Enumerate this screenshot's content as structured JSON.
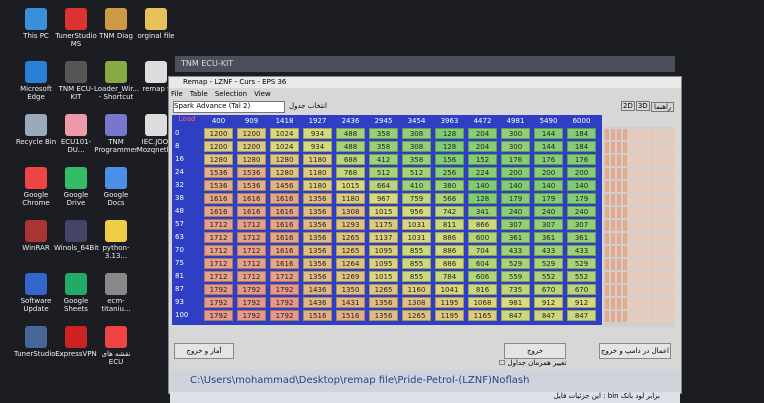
{
  "desktop_icons": [
    {
      "label": "This PC"
    },
    {
      "label": "TunerStudio MS"
    },
    {
      "label": "TNM Diag"
    },
    {
      "label": "orginal file"
    },
    {
      "label": "Microsoft Edge"
    },
    {
      "label": "TNM ECU-KIT"
    },
    {
      "label": "Loader_Wir... - Shortcut"
    },
    {
      "label": "remap f"
    },
    {
      "label": "Recycle Bin"
    },
    {
      "label": "ECU101-DU..."
    },
    {
      "label": "TNM Programmer"
    },
    {
      "label": "IEC.JOOI Mozqnetl..."
    },
    {
      "label": "Google Chrome"
    },
    {
      "label": "Google Drive"
    },
    {
      "label": "Google Docs"
    },
    {
      "label": "WinRAR"
    },
    {
      "label": "Winols_64Bit"
    },
    {
      "label": "python-3.13..."
    },
    {
      "label": "Software Update"
    },
    {
      "label": "Google Sheets"
    },
    {
      "label": "ecm-titaniu..."
    },
    {
      "label": "TunerStudio..."
    },
    {
      "label": "ExpressVPN"
    },
    {
      "label": "نقشه های ECU"
    }
  ],
  "window": {
    "back_title": "TNM ECU-KIT",
    "title": "Remap - LZNF - Curs - EPS 36",
    "menu": [
      "File",
      "Table",
      "Selection",
      "View"
    ],
    "dropdown": "Spark Advance (Tal 2)",
    "dropdown_label": "انتخاب جدول",
    "right_tabs": [
      "2D",
      "3D"
    ],
    "right_button": "راهنما",
    "table": {
      "corner": "Load",
      "columns": [
        "400",
        "909",
        "1418",
        "1927",
        "2436",
        "2945",
        "3454",
        "3963",
        "4472",
        "4981",
        "5490",
        "6000"
      ],
      "rows": [
        {
          "label": "0",
          "values": [
            1200,
            1200,
            1024,
            934,
            488,
            358,
            308,
            128,
            204,
            300,
            144,
            184
          ]
        },
        {
          "label": "8",
          "values": [
            1200,
            1200,
            1024,
            934,
            488,
            358,
            308,
            128,
            204,
            300,
            144,
            184
          ]
        },
        {
          "label": "16",
          "values": [
            1280,
            1280,
            1280,
            1180,
            688,
            412,
            358,
            156,
            152,
            176,
            176,
            176
          ]
        },
        {
          "label": "24",
          "values": [
            1536,
            1536,
            1280,
            1180,
            768,
            512,
            512,
            256,
            224,
            200,
            200,
            200
          ]
        },
        {
          "label": "32",
          "values": [
            1536,
            1536,
            1456,
            1180,
            1015,
            664,
            410,
            380,
            140,
            140,
            140,
            140
          ]
        },
        {
          "label": "38",
          "values": [
            1616,
            1616,
            1616,
            1356,
            1180,
            967,
            759,
            566,
            128,
            179,
            179,
            179
          ]
        },
        {
          "label": "48",
          "values": [
            1616,
            1616,
            1616,
            1356,
            1308,
            1015,
            956,
            742,
            341,
            240,
            240,
            240
          ]
        },
        {
          "label": "57",
          "values": [
            1712,
            1712,
            1616,
            1356,
            1293,
            1175,
            1031,
            811,
            866,
            307,
            307,
            307
          ]
        },
        {
          "label": "63",
          "values": [
            1712,
            1712,
            1616,
            1356,
            1265,
            1137,
            1031,
            886,
            600,
            361,
            361,
            361
          ]
        },
        {
          "label": "70",
          "values": [
            1712,
            1712,
            1616,
            1356,
            1265,
            1095,
            855,
            886,
            704,
            433,
            433,
            433
          ]
        },
        {
          "label": "75",
          "values": [
            1712,
            1712,
            1616,
            1356,
            1264,
            1095,
            855,
            886,
            604,
            529,
            529,
            529
          ]
        },
        {
          "label": "81",
          "values": [
            1712,
            1712,
            1712,
            1356,
            1269,
            1015,
            855,
            784,
            606,
            559,
            552,
            552
          ]
        },
        {
          "label": "87",
          "values": [
            1792,
            1792,
            1792,
            1436,
            1350,
            1265,
            1160,
            1041,
            816,
            735,
            670,
            670
          ]
        },
        {
          "label": "93",
          "values": [
            1792,
            1792,
            1792,
            1436,
            1431,
            1356,
            1308,
            1195,
            1068,
            981,
            912,
            912
          ]
        },
        {
          "label": "100",
          "values": [
            1792,
            1792,
            1792,
            1516,
            1516,
            1356,
            1265,
            1195,
            1165,
            847,
            847,
            847
          ]
        }
      ]
    },
    "buttons": [
      "اعمال در دامپ و خروج",
      "خروج",
      "آمار و خروج"
    ],
    "checkbox": "تغییر همزمان جداول",
    "path": "C:\\Users\\mohammad\\Desktop\\remap file\\Pride-Petrol-(LZNF)Noflash",
    "status": "این جزئیات فایل : bin برابر لود بانک"
  }
}
